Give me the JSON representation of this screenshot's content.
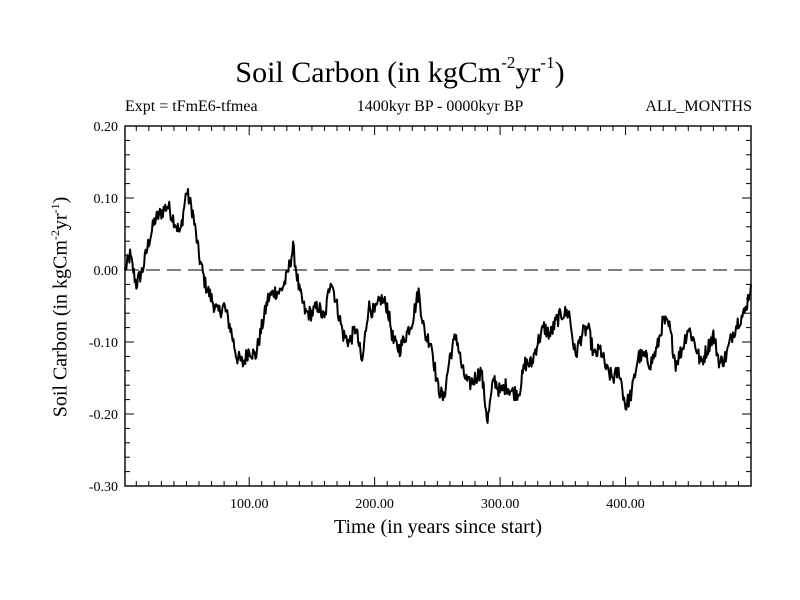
{
  "chart_data": {
    "type": "line",
    "title": {
      "main": "Soil Carbon (in kgCm",
      "sup1": "-2",
      "mid": "yr",
      "sup2": "-1",
      "close": ")"
    },
    "subtitle_left": "Expt = tFmE6-tfmea",
    "subtitle_center": "1400kyr BP - 0000kyr BP",
    "subtitle_right": "ALL_MONTHS",
    "xlabel": "Time (in years since start)",
    "ylabel": {
      "main": "Soil Carbon (in kgCm",
      "sup1": "-2",
      "mid": "yr",
      "sup2": "-1",
      "close": ")"
    },
    "xlim": [
      1,
      500
    ],
    "ylim": [
      -0.3,
      0.2
    ],
    "xticks": [
      100,
      200,
      300,
      400
    ],
    "xtick_labels": [
      "100.00",
      "200.00",
      "300.00",
      "400.00"
    ],
    "yticks": [
      0.2,
      0.1,
      0.0,
      -0.1,
      -0.2,
      -0.3
    ],
    "ytick_labels": [
      "0.20",
      "0.10",
      "0.00",
      "-0.10",
      "-0.20",
      "-0.30"
    ],
    "reference_line": {
      "y": 0.0,
      "style": "dashed"
    },
    "series": [
      {
        "name": "Soil Carbon",
        "x": [
          1,
          5,
          10,
          15,
          20,
          25,
          30,
          35,
          40,
          45,
          50,
          55,
          60,
          65,
          70,
          75,
          80,
          85,
          90,
          95,
          100,
          105,
          110,
          115,
          120,
          125,
          130,
          135,
          140,
          145,
          150,
          155,
          160,
          165,
          170,
          175,
          180,
          185,
          190,
          195,
          200,
          205,
          210,
          215,
          220,
          225,
          230,
          235,
          240,
          245,
          250,
          255,
          260,
          265,
          270,
          275,
          280,
          285,
          290,
          295,
          300,
          305,
          310,
          315,
          320,
          325,
          330,
          335,
          340,
          345,
          350,
          355,
          360,
          365,
          370,
          375,
          380,
          385,
          390,
          395,
          400,
          405,
          410,
          415,
          420,
          425,
          430,
          435,
          440,
          445,
          450,
          455,
          460,
          465,
          470,
          475,
          480,
          485,
          490,
          495,
          500
        ],
        "values": [
          0.0,
          0.02,
          -0.02,
          0.0,
          0.04,
          0.07,
          0.08,
          0.09,
          0.07,
          0.05,
          0.11,
          0.08,
          0.02,
          -0.02,
          -0.04,
          -0.06,
          -0.05,
          -0.08,
          -0.12,
          -0.13,
          -0.11,
          -0.12,
          -0.08,
          -0.04,
          -0.03,
          -0.03,
          -0.01,
          0.03,
          -0.03,
          -0.06,
          -0.06,
          -0.05,
          -0.07,
          -0.01,
          -0.05,
          -0.09,
          -0.1,
          -0.08,
          -0.13,
          -0.05,
          -0.06,
          -0.04,
          -0.05,
          -0.1,
          -0.11,
          -0.09,
          -0.07,
          -0.03,
          -0.09,
          -0.1,
          -0.16,
          -0.18,
          -0.12,
          -0.09,
          -0.14,
          -0.16,
          -0.15,
          -0.14,
          -0.21,
          -0.15,
          -0.17,
          -0.16,
          -0.17,
          -0.17,
          -0.13,
          -0.13,
          -0.1,
          -0.08,
          -0.09,
          -0.07,
          -0.06,
          -0.06,
          -0.12,
          -0.09,
          -0.08,
          -0.12,
          -0.11,
          -0.14,
          -0.15,
          -0.14,
          -0.19,
          -0.17,
          -0.12,
          -0.12,
          -0.13,
          -0.11,
          -0.07,
          -0.08,
          -0.13,
          -0.11,
          -0.08,
          -0.1,
          -0.13,
          -0.11,
          -0.09,
          -0.13,
          -0.12,
          -0.09,
          -0.07,
          -0.06,
          -0.02
        ]
      }
    ]
  }
}
